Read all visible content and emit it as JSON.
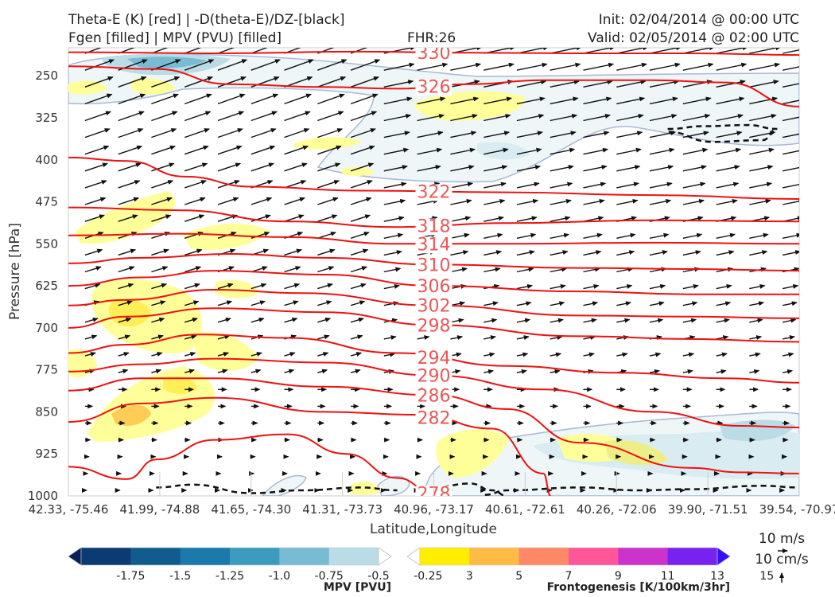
{
  "header": {
    "left_line1": "Theta-E (K) [red] | -D(theta-E)/DZ-[black]",
    "left_line2": "Fgen [filled] | MPV (PVU) [filled]",
    "fhr": "FHR:26",
    "init": "Init: 02/04/2014 @ 00:00 UTC",
    "valid": "Valid: 02/05/2014 @ 02:00 UTC"
  },
  "chart_data": {
    "type": "cross-section",
    "xlabel": "Latitude,Longitude",
    "ylabel": "Pressure [hPa]",
    "ylim": [
      1000,
      200
    ],
    "y_ticks": [
      250,
      325,
      400,
      475,
      550,
      625,
      700,
      775,
      850,
      925,
      1000
    ],
    "x_ticks": [
      "42.33, -75.46",
      "41.99, -74.88",
      "41.65, -74.30",
      "41.31, -73.73",
      "40.96, -73.17",
      "40.61, -72.61",
      "40.26, -72.06",
      "39.90, -71.51",
      "39.54, -70.97"
    ],
    "theta_e_contours": [
      {
        "label": "330",
        "pts": [
          [
            0,
            208
          ],
          [
            0.2,
            210
          ],
          [
            0.4,
            207
          ],
          [
            0.55,
            209
          ],
          [
            0.7,
            210
          ],
          [
            0.85,
            210
          ],
          [
            1,
            213
          ]
        ]
      },
      {
        "label": "326",
        "pts": [
          [
            0,
            233
          ],
          [
            0.12,
            238
          ],
          [
            0.22,
            265
          ],
          [
            0.35,
            270
          ],
          [
            0.45,
            273
          ],
          [
            0.55,
            265
          ],
          [
            0.65,
            258
          ],
          [
            0.8,
            258
          ],
          [
            0.9,
            262
          ],
          [
            1,
            305
          ]
        ]
      },
      {
        "label": "322",
        "pts": [
          [
            0,
            396
          ],
          [
            0.08,
            402
          ],
          [
            0.16,
            430
          ],
          [
            0.25,
            448
          ],
          [
            0.4,
            455
          ],
          [
            0.6,
            458
          ],
          [
            0.8,
            463
          ],
          [
            1,
            470
          ]
        ]
      },
      {
        "label": "318",
        "pts": [
          [
            0,
            485
          ],
          [
            0.15,
            490
          ],
          [
            0.3,
            510
          ],
          [
            0.45,
            520
          ],
          [
            0.6,
            513
          ],
          [
            0.8,
            508
          ],
          [
            1,
            510
          ]
        ]
      },
      {
        "label": "314",
        "pts": [
          [
            0,
            535
          ],
          [
            0.15,
            532
          ],
          [
            0.3,
            538
          ],
          [
            0.45,
            550
          ],
          [
            0.6,
            550
          ],
          [
            0.8,
            548
          ],
          [
            1,
            550
          ]
        ]
      },
      {
        "label": "310",
        "pts": [
          [
            0,
            585
          ],
          [
            0.1,
            575
          ],
          [
            0.22,
            568
          ],
          [
            0.35,
            575
          ],
          [
            0.5,
            587
          ],
          [
            0.7,
            593
          ],
          [
            0.85,
            595
          ],
          [
            1,
            598
          ]
        ]
      },
      {
        "label": "306",
        "pts": [
          [
            0,
            625
          ],
          [
            0.1,
            610
          ],
          [
            0.2,
            598
          ],
          [
            0.35,
            605
          ],
          [
            0.5,
            625
          ],
          [
            0.7,
            635
          ],
          [
            0.85,
            640
          ],
          [
            1,
            640
          ]
        ]
      },
      {
        "label": "302",
        "pts": [
          [
            0,
            660
          ],
          [
            0.08,
            650
          ],
          [
            0.2,
            632
          ],
          [
            0.32,
            638
          ],
          [
            0.5,
            660
          ],
          [
            0.7,
            678
          ],
          [
            0.85,
            680
          ],
          [
            1,
            683
          ]
        ]
      },
      {
        "label": "298",
        "pts": [
          [
            0,
            700
          ],
          [
            0.08,
            680
          ],
          [
            0.2,
            665
          ],
          [
            0.35,
            672
          ],
          [
            0.5,
            695
          ],
          [
            0.7,
            715
          ],
          [
            0.85,
            720
          ],
          [
            1,
            725
          ]
        ]
      },
      {
        "label": "294",
        "pts": [
          [
            0,
            745
          ],
          [
            0.08,
            730
          ],
          [
            0.18,
            712
          ],
          [
            0.3,
            718
          ],
          [
            0.45,
            745
          ],
          [
            0.6,
            768
          ],
          [
            0.75,
            780
          ],
          [
            0.9,
            790
          ],
          [
            1,
            798
          ]
        ]
      },
      {
        "label": "290",
        "pts": [
          [
            0,
            778
          ],
          [
            0.1,
            765
          ],
          [
            0.2,
            755
          ],
          [
            0.35,
            762
          ],
          [
            0.5,
            785
          ],
          [
            0.65,
            810
          ],
          [
            0.8,
            850
          ],
          [
            0.92,
            875
          ],
          [
            1,
            878
          ]
        ]
      },
      {
        "label": "286",
        "pts": [
          [
            0,
            812
          ],
          [
            0.1,
            790
          ],
          [
            0.2,
            790
          ],
          [
            0.35,
            805
          ],
          [
            0.5,
            820
          ],
          [
            0.6,
            845
          ],
          [
            0.7,
            905
          ],
          [
            0.85,
            950
          ],
          [
            0.92,
            958
          ],
          [
            1,
            960
          ]
        ]
      },
      {
        "label": "282",
        "pts": [
          [
            0,
            868
          ],
          [
            0.1,
            835
          ],
          [
            0.2,
            825
          ],
          [
            0.35,
            850
          ],
          [
            0.48,
            855
          ],
          [
            0.58,
            880
          ],
          [
            0.65,
            960
          ],
          [
            0.66,
            1000
          ]
        ]
      },
      {
        "label": "278",
        "pts": [
          [
            0,
            948
          ],
          [
            0.08,
            970
          ],
          [
            0.12,
            935
          ],
          [
            0.2,
            900
          ],
          [
            0.3,
            890
          ],
          [
            0.38,
            925
          ],
          [
            0.45,
            968
          ],
          [
            0.5,
            995
          ]
        ]
      }
    ],
    "dtheta_dz_contours": [
      [
        [
          0.12,
          985
        ],
        [
          0.17,
          980
        ],
        [
          0.25,
          995
        ],
        [
          0.32,
          990
        ],
        [
          0.4,
          985
        ],
        [
          0.45,
          990
        ]
      ],
      [
        [
          0.5,
          985
        ],
        [
          0.55,
          978
        ],
        [
          0.58,
          990
        ],
        [
          0.6,
          1000
        ]
      ],
      [
        [
          0.57,
          998
        ],
        [
          0.6,
          990
        ],
        [
          0.7,
          985
        ],
        [
          0.78,
          990
        ],
        [
          0.85,
          988
        ],
        [
          0.95,
          982
        ],
        [
          1,
          985
        ]
      ],
      [
        [
          0.82,
          345
        ],
        [
          0.87,
          340
        ],
        [
          0.93,
          338
        ],
        [
          0.97,
          345
        ],
        [
          0.95,
          365
        ],
        [
          0.88,
          368
        ],
        [
          0.82,
          350
        ]
      ]
    ],
    "mpv_colorbar": {
      "label": "MPV [PVU]",
      "ticks": [
        "-1.75",
        "-1.5",
        "-1.25",
        "-1.0",
        "-0.75",
        "-0.5",
        "-0.25"
      ],
      "colors": [
        "#08205a",
        "#0c3b73",
        "#115c8f",
        "#1a7aab",
        "#3d9bc0",
        "#79bbd2",
        "#b9dce6",
        "#ffffff"
      ]
    },
    "fgen_colorbar": {
      "label": "Frontogenesis [K/100km/3hr]",
      "ticks": [
        "3",
        "5",
        "7",
        "9",
        "11",
        "13",
        "15"
      ],
      "colors": [
        "#ffffff",
        "#ffee00",
        "#ffbb44",
        "#ff8866",
        "#ff5599",
        "#cc33cc",
        "#7722ee",
        "#3311ff"
      ]
    },
    "wind_reference": {
      "horizontal": "10 m/s",
      "vertical": "10 cm/s"
    }
  }
}
